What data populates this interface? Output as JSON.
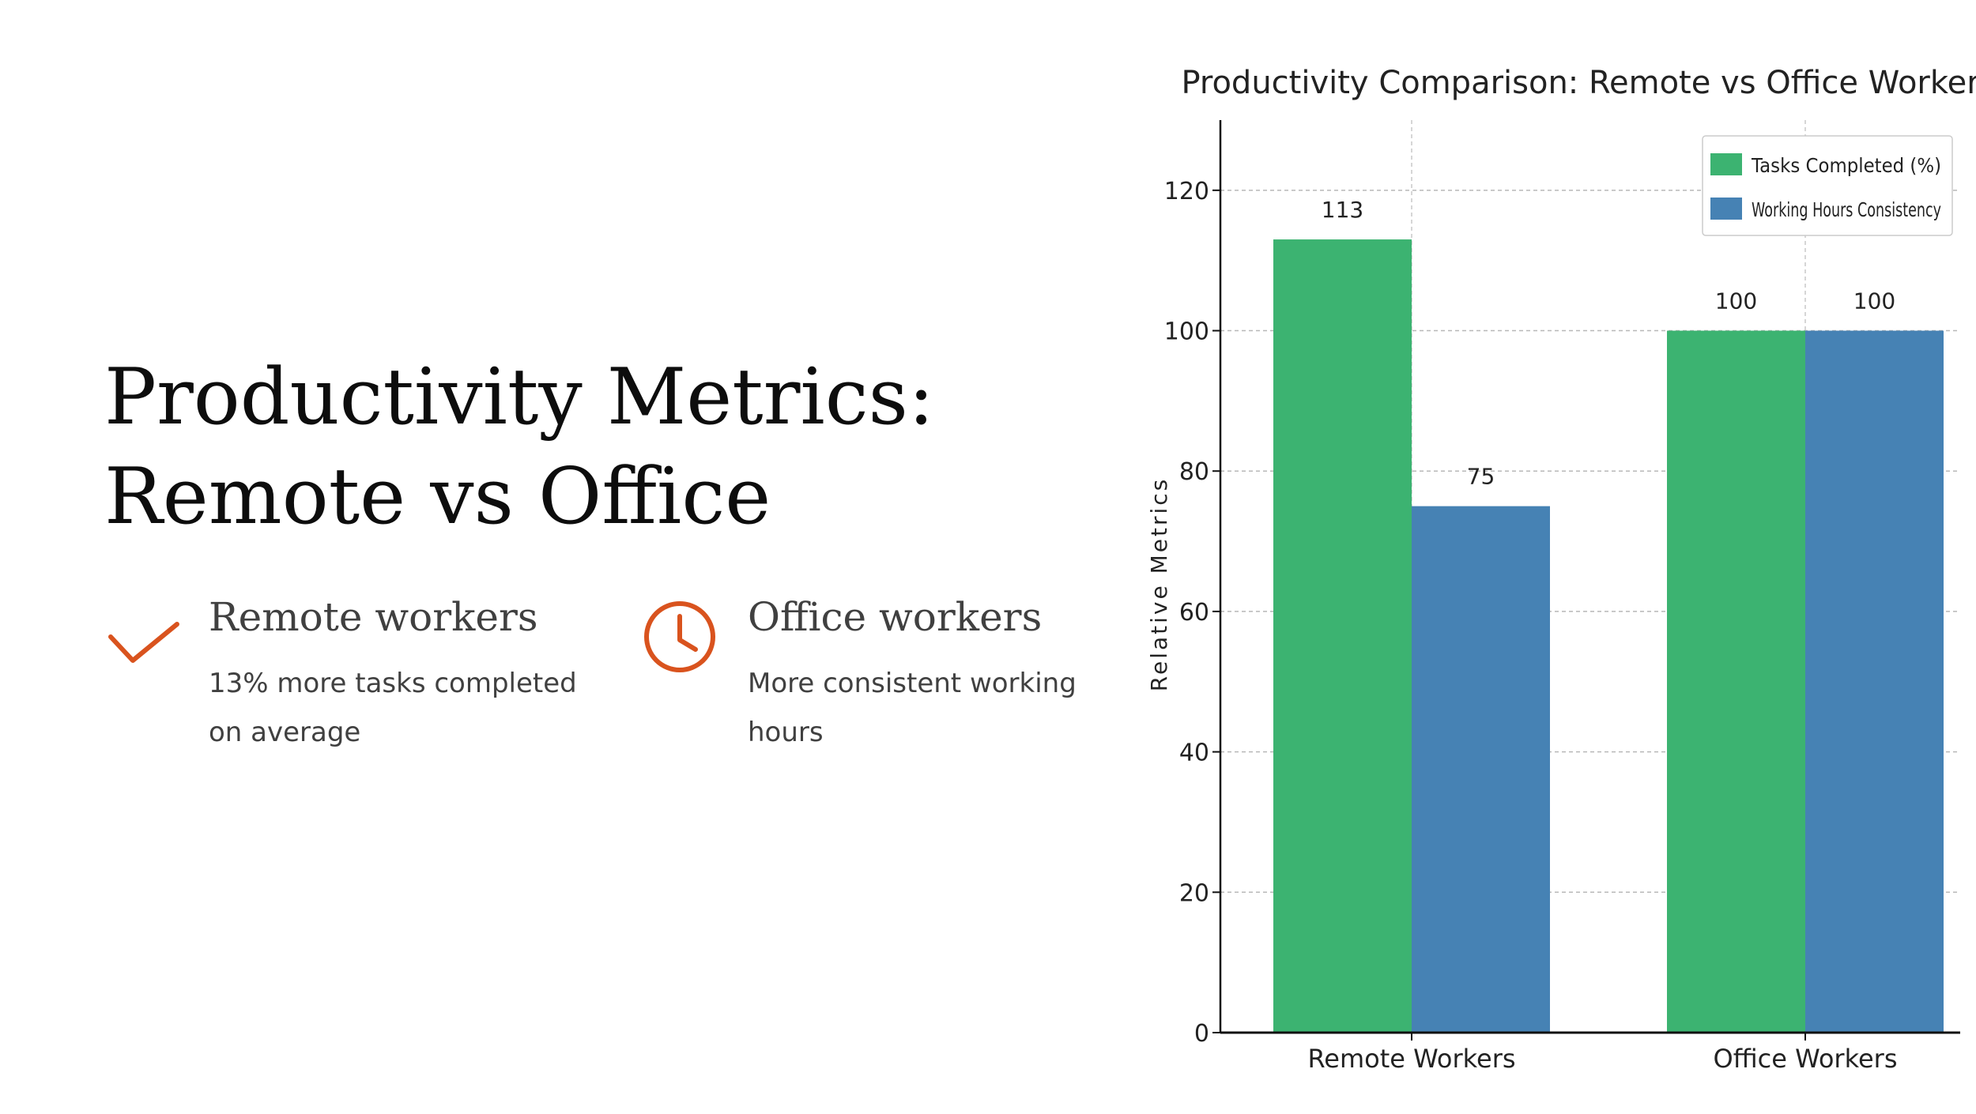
{
  "slide": {
    "title": "Productivity Metrics: Remote vs Office",
    "features": [
      {
        "icon": "checkmark-icon",
        "heading": "Remote workers",
        "description": "13% more tasks completed on average"
      },
      {
        "icon": "clock-icon",
        "heading": "Office workers",
        "description": "More consistent working hours"
      }
    ],
    "accent_color": "#D9531E"
  },
  "chart_data": {
    "type": "bar",
    "title": "Productivity Comparison: Remote vs Office Workers",
    "xlabel": "",
    "ylabel": "Relative Metrics",
    "categories": [
      "Remote Workers",
      "Office Workers"
    ],
    "series": [
      {
        "name": "Tasks Completed (%)",
        "values": [
          113,
          100
        ],
        "color": "#3CB371"
      },
      {
        "name": "Working Hours Consistency",
        "values": [
          75,
          100
        ],
        "color": "#4682B4"
      }
    ],
    "ylim": [
      0,
      130
    ],
    "yticks": [
      0,
      20,
      40,
      60,
      80,
      100,
      120
    ],
    "data_labels": true,
    "grid": true,
    "legend_position": "top-right"
  }
}
